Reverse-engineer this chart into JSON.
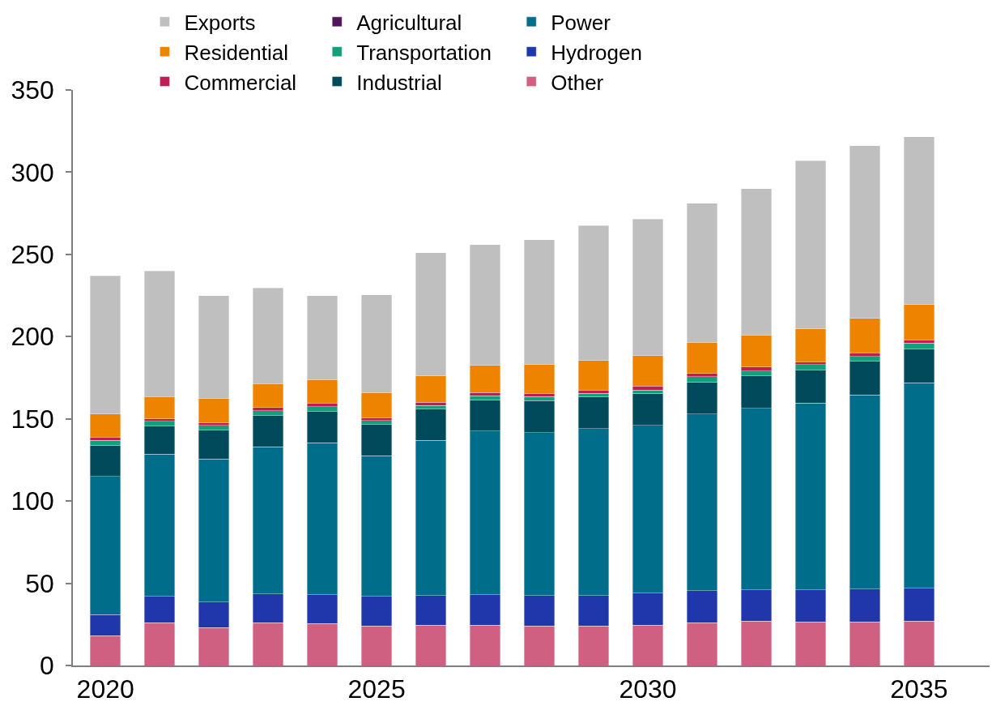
{
  "chart_data": {
    "type": "bar",
    "stacked": true,
    "x": [
      2020,
      2021,
      2022,
      2023,
      2024,
      2025,
      2026,
      2027,
      2028,
      2029,
      2030,
      2031,
      2032,
      2033,
      2034,
      2035
    ],
    "xlim": [
      2019.4,
      2036.3
    ],
    "xticks": [
      2020,
      2025,
      2030,
      2035
    ],
    "ylim": [
      0,
      350
    ],
    "yticks": [
      0,
      50,
      100,
      150,
      200,
      250,
      300,
      350
    ],
    "grid": false,
    "legend": "top",
    "series": [
      {
        "name": "Other",
        "color": "#cf6082",
        "values": [
          18,
          26,
          23,
          26,
          25.5,
          24,
          24.5,
          24.5,
          24,
          24,
          24.5,
          26,
          27,
          26.5,
          26.5,
          27
        ]
      },
      {
        "name": "Hydrogen",
        "color": "#1f37aa",
        "values": [
          13,
          16,
          15.5,
          17.5,
          17.5,
          18,
          18,
          18.5,
          18.5,
          18.5,
          19.5,
          19.5,
          19,
          19.5,
          20,
          20
        ]
      },
      {
        "name": "Power",
        "color": "#006e8a",
        "values": [
          84,
          86.5,
          87,
          89.5,
          92.5,
          85.5,
          94.5,
          99.5,
          99,
          101.5,
          102,
          107.5,
          110.5,
          113.5,
          118,
          125
        ]
      },
      {
        "name": "Industrial",
        "color": "#004a5c",
        "values": [
          19,
          17,
          17.5,
          19,
          19,
          19,
          19,
          19,
          19.5,
          19.5,
          19.5,
          19.5,
          19.5,
          20,
          20.5,
          20.5
        ]
      },
      {
        "name": "Transportation",
        "color": "#139f79",
        "values": [
          3,
          3,
          3,
          3,
          3,
          2.5,
          2,
          2.5,
          2.5,
          2,
          2,
          3,
          3,
          3.5,
          3,
          3.5
        ]
      },
      {
        "name": "Agricultural",
        "color": "#4f1459",
        "values": [
          null,
          null,
          null,
          null,
          null,
          null,
          null,
          null,
          null,
          null,
          null,
          null,
          null,
          null,
          null,
          null
        ]
      },
      {
        "name": "Commercial",
        "color": "#be1e54",
        "values": [
          2,
          1.5,
          1.5,
          2,
          2,
          1.5,
          2,
          2,
          2,
          2,
          2.5,
          2,
          2.5,
          1.5,
          2,
          2
        ]
      },
      {
        "name": "Residential",
        "color": "#ee8300",
        "values": [
          14,
          13.5,
          15,
          14.5,
          14.5,
          15.5,
          16,
          16.5,
          17.5,
          18,
          18.5,
          19,
          19.5,
          20.5,
          21,
          21.5
        ]
      },
      {
        "name": "Exports",
        "color": "#bfbfbf",
        "values": [
          84,
          76.5,
          62.5,
          58,
          51,
          59.5,
          75,
          73.5,
          76,
          82,
          83,
          84.5,
          89,
          102,
          105,
          102
        ]
      }
    ]
  }
}
